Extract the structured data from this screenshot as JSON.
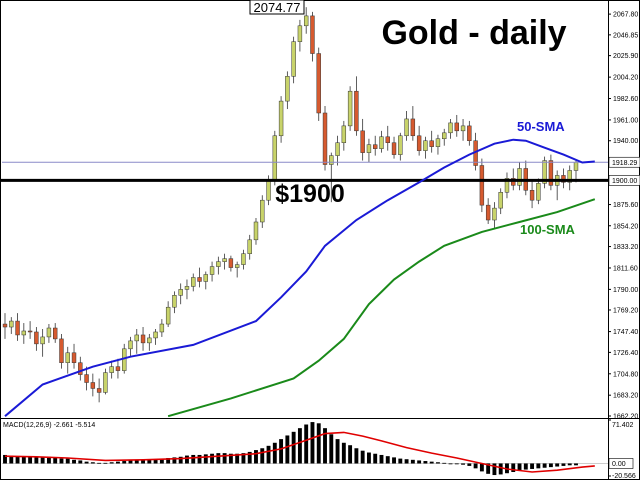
{
  "chart_data": [
    {
      "type": "candlestick",
      "title": "Gold - daily",
      "y_ticks": [
        "2067.80",
        "2046.85",
        "2025.90",
        "2004.20",
        "1982.60",
        "1961.00",
        "1940.00",
        "1918.29",
        "1900.00",
        "1875.60",
        "1854.20",
        "1833.20",
        "1811.60",
        "1790.00",
        "1769.20",
        "1747.40",
        "1726.40",
        "1704.80",
        "1683.20",
        "1662.20"
      ],
      "ylim": [
        1662.2,
        2078.0
      ],
      "current_price_label": "1918.29",
      "support_level": 1900.0,
      "support_level_label": "1900.00",
      "annotations": {
        "high_label": "2074.77",
        "support_text": "$1900",
        "sma50_label": "50-SMA",
        "sma100_label": "100-SMA"
      },
      "candles": [
        [
          1755,
          1766,
          1740,
          1752
        ],
        [
          1752,
          1762,
          1745,
          1758
        ],
        [
          1758,
          1766,
          1738,
          1744
        ],
        [
          1744,
          1756,
          1735,
          1748
        ],
        [
          1748,
          1758,
          1740,
          1747
        ],
        [
          1747,
          1752,
          1728,
          1735
        ],
        [
          1735,
          1750,
          1722,
          1742
        ],
        [
          1742,
          1755,
          1736,
          1751
        ],
        [
          1751,
          1756,
          1736,
          1740
        ],
        [
          1740,
          1745,
          1710,
          1716
        ],
        [
          1716,
          1732,
          1705,
          1726
        ],
        [
          1726,
          1735,
          1710,
          1716
        ],
        [
          1716,
          1722,
          1698,
          1704
        ],
        [
          1704,
          1712,
          1688,
          1696
        ],
        [
          1696,
          1705,
          1682,
          1690
        ],
        [
          1690,
          1700,
          1676,
          1686
        ],
        [
          1686,
          1710,
          1684,
          1706
        ],
        [
          1706,
          1718,
          1700,
          1712
        ],
        [
          1712,
          1720,
          1700,
          1708
        ],
        [
          1708,
          1735,
          1705,
          1730
        ],
        [
          1730,
          1742,
          1722,
          1738
        ],
        [
          1738,
          1750,
          1725,
          1744
        ],
        [
          1744,
          1752,
          1728,
          1736
        ],
        [
          1736,
          1745,
          1728,
          1741
        ],
        [
          1741,
          1750,
          1734,
          1747
        ],
        [
          1747,
          1760,
          1742,
          1755
        ],
        [
          1755,
          1778,
          1752,
          1772
        ],
        [
          1772,
          1788,
          1766,
          1784
        ],
        [
          1784,
          1796,
          1775,
          1790
        ],
        [
          1790,
          1800,
          1780,
          1793
        ],
        [
          1793,
          1806,
          1788,
          1802
        ],
        [
          1802,
          1812,
          1792,
          1798
        ],
        [
          1798,
          1808,
          1790,
          1805
        ],
        [
          1805,
          1818,
          1798,
          1813
        ],
        [
          1813,
          1823,
          1805,
          1818
        ],
        [
          1818,
          1826,
          1810,
          1821
        ],
        [
          1821,
          1824,
          1808,
          1812
        ],
        [
          1812,
          1818,
          1802,
          1815
        ],
        [
          1815,
          1830,
          1810,
          1826
        ],
        [
          1826,
          1845,
          1820,
          1840
        ],
        [
          1840,
          1862,
          1835,
          1858
        ],
        [
          1858,
          1885,
          1852,
          1880
        ],
        [
          1880,
          1905,
          1875,
          1900
        ],
        [
          1900,
          1950,
          1895,
          1945
        ],
        [
          1945,
          1985,
          1938,
          1980
        ],
        [
          1980,
          2010,
          1972,
          2005
        ],
        [
          2005,
          2045,
          1998,
          2040
        ],
        [
          2040,
          2062,
          2030,
          2056
        ],
        [
          2056,
          2074.77,
          2048,
          2066
        ],
        [
          2066,
          2070,
          2020,
          2028
        ],
        [
          2028,
          2034,
          1960,
          1968
        ],
        [
          1968,
          1975,
          1910,
          1916
        ],
        [
          1916,
          1928,
          1878,
          1925
        ],
        [
          1925,
          1945,
          1915,
          1938
        ],
        [
          1938,
          1960,
          1930,
          1955
        ],
        [
          1955,
          1995,
          1950,
          1990
        ],
        [
          1990,
          2005,
          1945,
          1950
        ],
        [
          1950,
          1962,
          1920,
          1928
        ],
        [
          1928,
          1942,
          1918,
          1936
        ],
        [
          1936,
          1945,
          1925,
          1932
        ],
        [
          1932,
          1950,
          1928,
          1944
        ],
        [
          1944,
          1955,
          1930,
          1938
        ],
        [
          1938,
          1944,
          1922,
          1926
        ],
        [
          1926,
          1948,
          1920,
          1945
        ],
        [
          1945,
          1970,
          1940,
          1962
        ],
        [
          1962,
          1975,
          1940,
          1945
        ],
        [
          1945,
          1955,
          1925,
          1930
        ],
        [
          1930,
          1944,
          1922,
          1940
        ],
        [
          1940,
          1950,
          1928,
          1934
        ],
        [
          1934,
          1946,
          1926,
          1942
        ],
        [
          1942,
          1952,
          1935,
          1948
        ],
        [
          1948,
          1962,
          1942,
          1958
        ],
        [
          1958,
          1966,
          1944,
          1950
        ],
        [
          1950,
          1962,
          1940,
          1955
        ],
        [
          1955,
          1960,
          1935,
          1940
        ],
        [
          1940,
          1948,
          1910,
          1915
        ],
        [
          1915,
          1922,
          1868,
          1875
        ],
        [
          1875,
          1882,
          1856,
          1860
        ],
        [
          1860,
          1878,
          1852,
          1872
        ],
        [
          1872,
          1892,
          1866,
          1888
        ],
        [
          1888,
          1908,
          1882,
          1902
        ],
        [
          1902,
          1912,
          1890,
          1895
        ],
        [
          1895,
          1918,
          1890,
          1912
        ],
        [
          1912,
          1920,
          1885,
          1890
        ],
        [
          1890,
          1900,
          1872,
          1880
        ],
        [
          1880,
          1902,
          1876,
          1897
        ],
        [
          1897,
          1924,
          1892,
          1920
        ],
        [
          1920,
          1926,
          1890,
          1895
        ],
        [
          1895,
          1910,
          1880,
          1905
        ],
        [
          1905,
          1912,
          1892,
          1898
        ],
        [
          1898,
          1915,
          1890,
          1910
        ],
        [
          1910,
          1920,
          1898,
          1918.29
        ]
      ],
      "sma50_points": [
        [
          0,
          1662
        ],
        [
          6,
          1694
        ],
        [
          14,
          1712
        ],
        [
          20,
          1722
        ],
        [
          30,
          1734
        ],
        [
          40,
          1758
        ],
        [
          44,
          1782
        ],
        [
          48,
          1808
        ],
        [
          51,
          1834
        ],
        [
          56,
          1860
        ],
        [
          61,
          1880
        ],
        [
          66,
          1898
        ],
        [
          70,
          1913
        ],
        [
          74,
          1926
        ],
        [
          78,
          1937
        ],
        [
          81,
          1941
        ],
        [
          83,
          1940
        ],
        [
          86,
          1933
        ],
        [
          89,
          1926
        ],
        [
          92,
          1918
        ],
        [
          94,
          1919
        ]
      ],
      "sma100_points": [
        [
          26,
          1662
        ],
        [
          36,
          1680
        ],
        [
          46,
          1700
        ],
        [
          50,
          1718
        ],
        [
          54,
          1740
        ],
        [
          58,
          1775
        ],
        [
          62,
          1800
        ],
        [
          66,
          1818
        ],
        [
          70,
          1834
        ],
        [
          76,
          1848
        ],
        [
          82,
          1858
        ],
        [
          88,
          1868
        ],
        [
          94,
          1881
        ]
      ],
      "macd": {
        "label": "MACD(12,26,9) -2.661 -5.514",
        "y_ticks": [
          "71.402",
          "0.00",
          "-20.566"
        ],
        "ylim": [
          -20.566,
          71.402
        ],
        "histogram": [
          14,
          13,
          12,
          11,
          12,
          10,
          10,
          11,
          9,
          8,
          8,
          6,
          5,
          3,
          2,
          1,
          1,
          2,
          3,
          4,
          5,
          6,
          6,
          6,
          6,
          7,
          9,
          10,
          11,
          13,
          14,
          14,
          15,
          16,
          17,
          17,
          16,
          16,
          17,
          19,
          22,
          25,
          29,
          34,
          40,
          46,
          52,
          58,
          64,
          68,
          66,
          58,
          48,
          40,
          34,
          30,
          25,
          21,
          18,
          16,
          14,
          12,
          10,
          8,
          7,
          6,
          5,
          4,
          3,
          2,
          1,
          0,
          -1,
          -2,
          -4,
          -8,
          -13,
          -17,
          -19,
          -18,
          -16,
          -14,
          -12,
          -10,
          -9,
          -8,
          -7,
          -6,
          -5,
          -4,
          -3,
          -3
        ],
        "signal_points": [
          [
            0,
            12
          ],
          [
            5,
            11
          ],
          [
            10,
            9
          ],
          [
            16,
            5
          ],
          [
            22,
            6
          ],
          [
            28,
            8
          ],
          [
            34,
            12
          ],
          [
            40,
            16
          ],
          [
            44,
            24
          ],
          [
            48,
            38
          ],
          [
            51,
            49
          ],
          [
            54,
            51
          ],
          [
            57,
            45
          ],
          [
            60,
            37
          ],
          [
            64,
            26
          ],
          [
            68,
            17
          ],
          [
            72,
            9
          ],
          [
            76,
            0
          ],
          [
            80,
            -9
          ],
          [
            84,
            -14
          ],
          [
            88,
            -11
          ],
          [
            92,
            -6
          ],
          [
            94,
            -4
          ]
        ]
      }
    }
  ],
  "colors": {
    "up_candle": "#c8d36a",
    "down_candle": "#d65a2f",
    "wick": "#333333",
    "sma50": "#1a1ad6",
    "sma100": "#1a8a1a",
    "support_line": "#000000",
    "price_line": "#8a8ac8",
    "macd_hist": "#000000",
    "macd_signal": "#e00000"
  }
}
